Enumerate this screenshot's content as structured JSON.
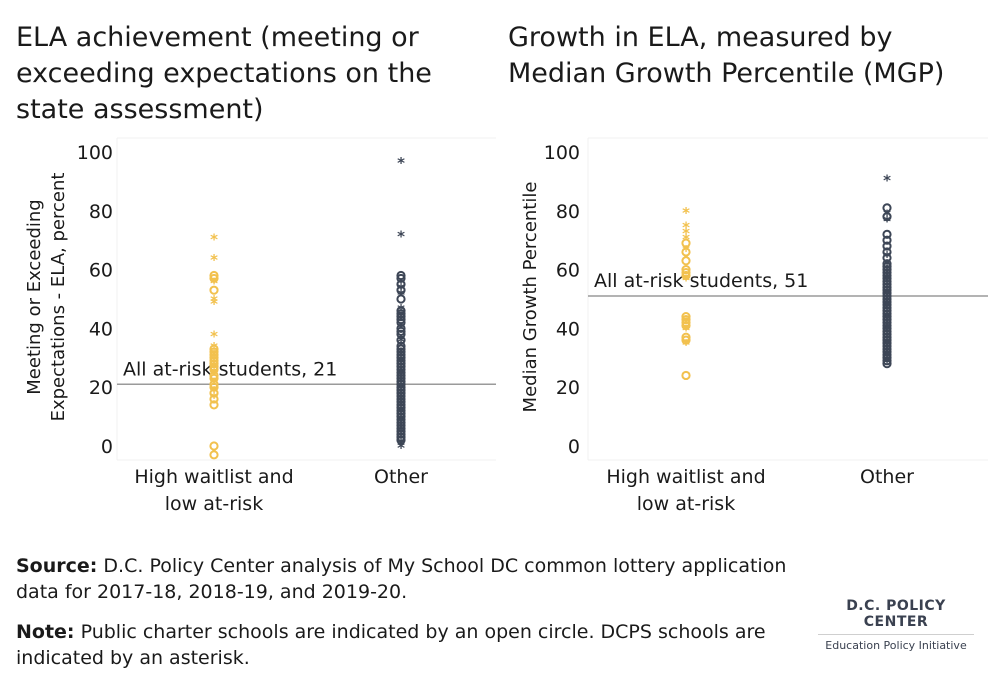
{
  "chart_data": [
    {
      "type": "scatter",
      "title": "ELA achievement (meeting or exceeding expectations on the state assessment)",
      "ylabel": "Meeting or Exceeding Expectations - ELA, percent",
      "categories": [
        "High waitlist and low at-risk",
        "Other"
      ],
      "ylim": [
        0,
        100
      ],
      "yticks": [
        "0",
        "20",
        "40",
        "60",
        "80",
        "100"
      ],
      "reference_line": {
        "value": 21,
        "label": "All at-risk students, 21"
      },
      "grid": false,
      "series": [
        {
          "category": "High waitlist and low at-risk",
          "color": "#f2c14e",
          "charter": [
            57,
            58,
            53,
            33,
            32,
            31,
            30,
            29,
            28,
            27,
            26,
            24,
            23,
            21,
            20,
            18,
            16,
            14,
            0,
            -3
          ],
          "dcps": [
            71,
            64,
            56,
            50,
            49,
            38,
            34,
            32,
            30,
            27,
            25,
            22,
            19,
            17
          ]
        },
        {
          "category": "Other",
          "color": "#3d4656",
          "charter": [
            58,
            57,
            55,
            53,
            50,
            46,
            45,
            44,
            43,
            42,
            40,
            39,
            38,
            36,
            34,
            33,
            32,
            31,
            30,
            29,
            28,
            27,
            26,
            25,
            24,
            23,
            22,
            21,
            20,
            19,
            18,
            17,
            16,
            15,
            14,
            13,
            12,
            11,
            10,
            9,
            8,
            7,
            6,
            5,
            4,
            3,
            2
          ],
          "dcps": [
            97,
            72,
            54,
            52,
            47,
            45,
            36,
            29,
            25,
            20,
            12,
            9,
            5,
            1,
            0
          ]
        }
      ]
    },
    {
      "type": "scatter",
      "title": "Growth in ELA, measured by Median Growth Percentile (MGP)",
      "ylabel": "Median Growth Percentile",
      "categories": [
        "High waitlist and low at-risk",
        "Other"
      ],
      "ylim": [
        0,
        100
      ],
      "yticks": [
        "0",
        "20",
        "40",
        "60",
        "80",
        "100"
      ],
      "reference_line": {
        "value": 51,
        "label": "All at-risk students, 51"
      },
      "grid": false,
      "series": [
        {
          "category": "High waitlist and low at-risk",
          "color": "#f2c14e",
          "charter": [
            69,
            66,
            63,
            60,
            59,
            58,
            44,
            43,
            42,
            41,
            37,
            36,
            24
          ],
          "dcps": [
            80,
            75,
            73,
            71,
            67,
            57,
            43,
            40,
            35
          ]
        },
        {
          "category": "Other",
          "color": "#3d4656",
          "charter": [
            81,
            78,
            72,
            70,
            68,
            66,
            64,
            62,
            61,
            60,
            59,
            58,
            57,
            56,
            55,
            54,
            53,
            52,
            51,
            50,
            49,
            48,
            47,
            46,
            45,
            44,
            43,
            42,
            41,
            40,
            39,
            38,
            37,
            36,
            35,
            34,
            33,
            32,
            31,
            30,
            29,
            28
          ],
          "dcps": [
            91,
            79,
            77,
            65,
            62,
            57,
            52,
            48,
            44,
            40,
            35,
            31,
            29
          ]
        }
      ]
    }
  ],
  "footer": {
    "source_label": "Source:",
    "source_text": " D.C. Policy Center analysis of My School DC common lottery application data for 2017-18, 2018-19, and 2019-20.",
    "note_label": "Note:",
    "note_text": " Public charter schools are indicated by an open circle. DCPS schools are indicated by an asterisk."
  },
  "brand": {
    "org": "D.C. POLICY CENTER",
    "initiative": "Education Policy Initiative"
  }
}
